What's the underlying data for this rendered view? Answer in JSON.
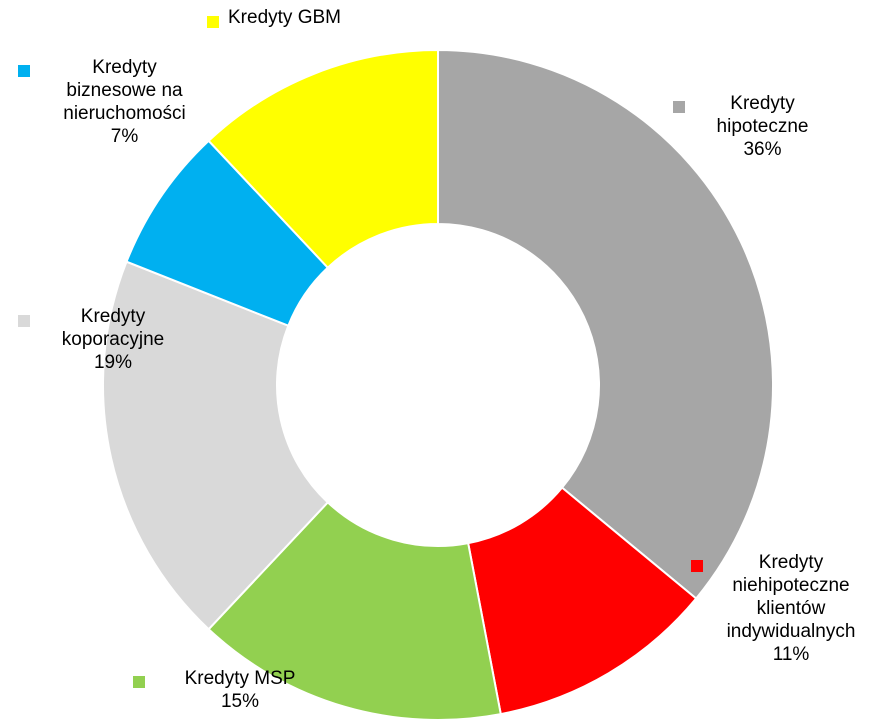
{
  "chart_data": {
    "type": "donut",
    "categories": [
      "Kredyty hipoteczne",
      "Kredyty niehipoteczne klientów indywidualnych",
      "Kredyty MSP",
      "Kredyty koporacyjne",
      "Kredyty biznesowe na nieruchomości",
      "Kredyty GBM"
    ],
    "values": [
      36,
      11,
      15,
      19,
      7,
      12
    ],
    "value_labels": [
      "36%",
      "11%",
      "15%",
      "19%",
      "7%",
      null
    ],
    "colors": [
      "#a6a6a6",
      "#ff0000",
      "#92d050",
      "#d9d9d9",
      "#00b0f0",
      "#ffff00"
    ]
  }
}
